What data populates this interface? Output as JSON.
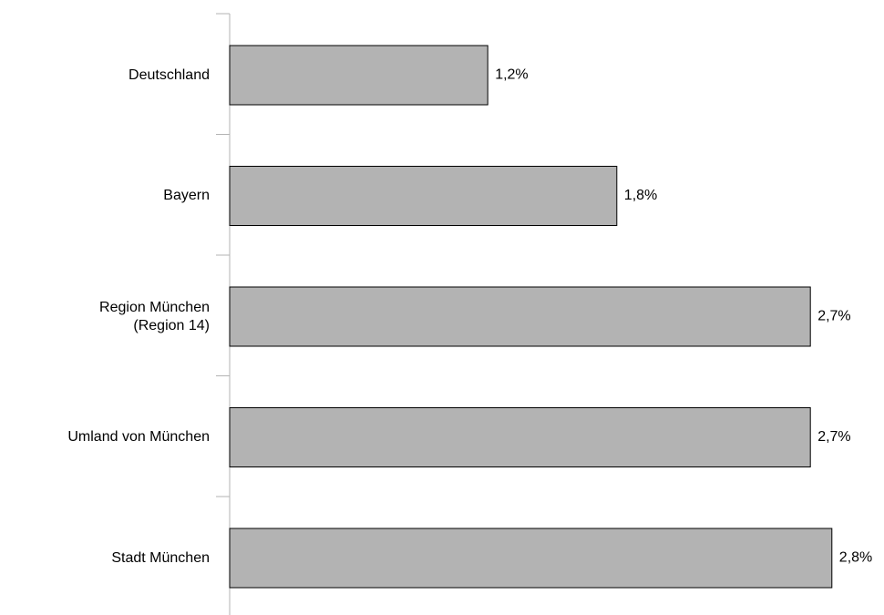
{
  "chart_data": {
    "type": "bar",
    "orientation": "horizontal",
    "categories": [
      "Deutschland",
      "Bayern",
      "Region München\n(Region 14)",
      "Umland von München",
      "Stadt München"
    ],
    "values": [
      1.2,
      1.8,
      2.7,
      2.7,
      2.8
    ],
    "value_labels": [
      "1,2%",
      "1,8%",
      "2,7%",
      "2,7%",
      "2,8%"
    ],
    "color": "#b3b3b3"
  }
}
